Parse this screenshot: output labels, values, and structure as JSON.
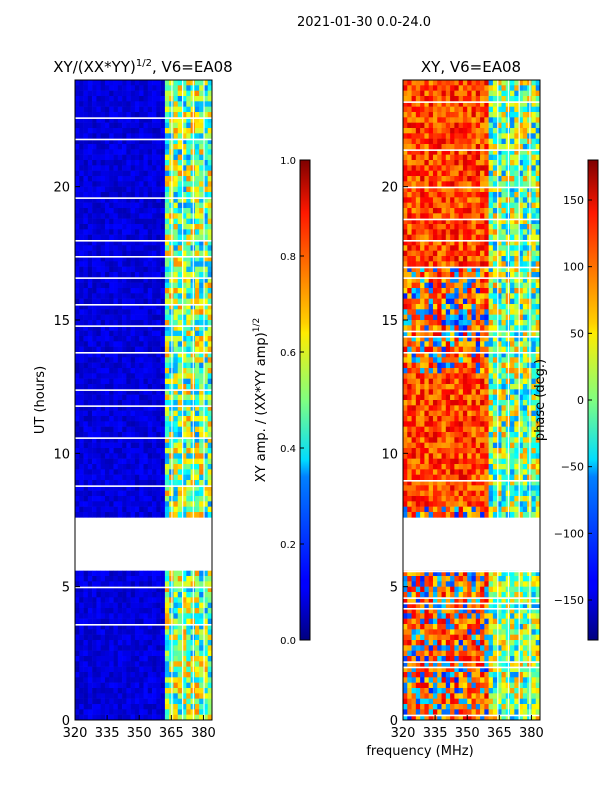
{
  "figure": {
    "suptitle": "2021-01-30 0.0-24.0",
    "xlabel_shared": "frequency (MHz)"
  },
  "colormap": "jet",
  "chart_data": [
    {
      "type": "heatmap",
      "title": "XY/(XX*YY)",
      "title_superscript": "1/2",
      "title_suffix": ", V6=EA08",
      "xlabel": "frequency (MHz)",
      "ylabel": "UT (hours)",
      "xlim": [
        320,
        384
      ],
      "ylim": [
        0,
        24
      ],
      "xticks": [
        320,
        335,
        350,
        365,
        380
      ],
      "yticks": [
        0,
        5,
        10,
        15,
        20
      ],
      "gap_hours": [
        5.55,
        7.65
      ],
      "rfi_band_mhz": [
        362,
        384
      ],
      "colorbar": {
        "label": "XY amp. / (XX*YY amp)",
        "label_superscript": "1/2",
        "range": [
          0.0,
          1.0
        ],
        "ticks": [
          0.0,
          0.2,
          0.4,
          0.6,
          0.8,
          1.0
        ],
        "tick_labels": [
          "0.0",
          "0.2",
          "0.4",
          "0.6",
          "0.8",
          "1.0"
        ]
      }
    },
    {
      "type": "heatmap",
      "title": "XY, V6=EA08",
      "xlabel": "frequency (MHz)",
      "ylabel": "",
      "xlim": [
        320,
        384
      ],
      "ylim": [
        0,
        24
      ],
      "xticks": [
        320,
        335,
        350,
        365,
        380
      ],
      "yticks": [
        0,
        5,
        10,
        15,
        20
      ],
      "gap_hours": [
        5.55,
        7.65
      ],
      "rfi_band_mhz": [
        361,
        384
      ],
      "colorbar": {
        "label": "phase (deg.)",
        "range": [
          -180,
          180
        ],
        "ticks": [
          -150,
          -100,
          -50,
          0,
          50,
          100,
          150
        ],
        "tick_labels": [
          "−150",
          "−100",
          "−50",
          "0",
          "50",
          "100",
          "150"
        ]
      }
    }
  ]
}
